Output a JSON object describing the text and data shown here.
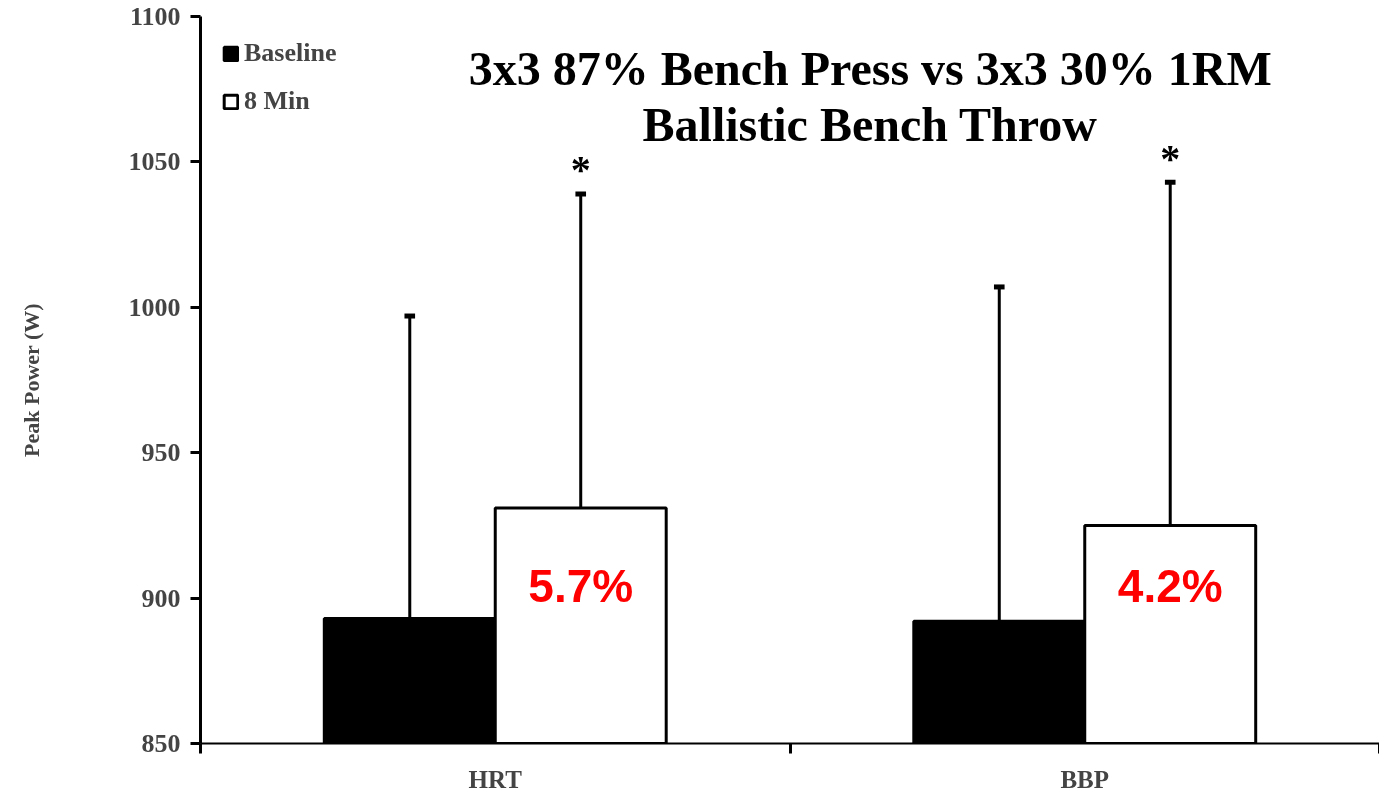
{
  "chart_data": {
    "type": "bar",
    "title": "3x3 87% Bench Press vs 3x3 30% 1RM Ballistic Bench Throw",
    "ylabel": "Peak Power (W)",
    "categories": [
      "HRT",
      "BBP"
    ],
    "series": [
      {
        "name": "Baseline",
        "color": "#000000",
        "values": [
          893,
          892
        ],
        "errors": [
          [
            893,
            997
          ],
          [
            892,
            1007
          ]
        ]
      },
      {
        "name": "8 Min",
        "color": "#ffffff",
        "values": [
          931,
          925
        ],
        "errors": [
          [
            931,
            1039
          ],
          [
            925,
            1043
          ]
        ]
      }
    ],
    "ylim": [
      850,
      1100
    ],
    "yticks": [
      850,
      900,
      950,
      1000,
      1050,
      1100
    ],
    "grid": false,
    "legend": "top left",
    "annotations": [
      "*",
      "*",
      {
        "text": "5.7%",
        "x": "HRT",
        "y": 904
      },
      {
        "text": "4.2%",
        "x": "BBP",
        "y": 904
      }
    ]
  }
}
